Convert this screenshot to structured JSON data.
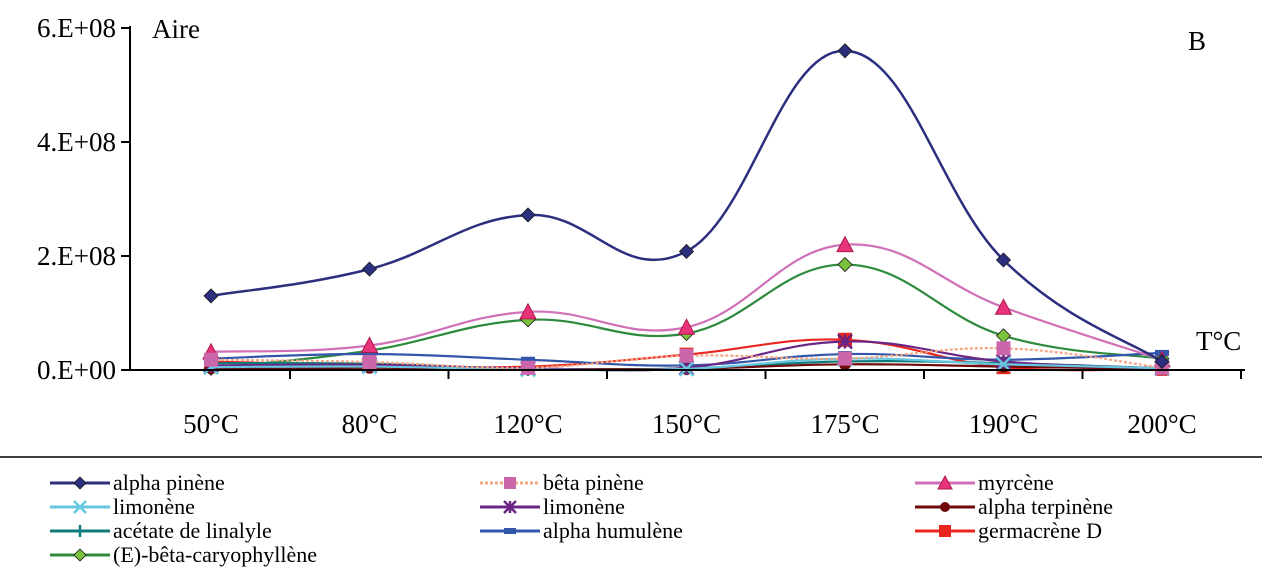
{
  "chart_data": {
    "type": "line",
    "ylabel": "Aire",
    "xlabel": "T°C",
    "panel_label": "B",
    "categories": [
      "50°C",
      "80°C",
      "120°C",
      "150°C",
      "175°C",
      "190°C",
      "200°C"
    ],
    "ylim": [
      0,
      600000000
    ],
    "yticks": [
      {
        "value": 0,
        "label": "0.E+00"
      },
      {
        "value": 200000000,
        "label": "2.E+08"
      },
      {
        "value": 400000000,
        "label": "4.E+08"
      },
      {
        "value": 600000000,
        "label": "6.E+08"
      }
    ],
    "grid": false,
    "smooth": true,
    "legend_position": "bottom",
    "series": [
      {
        "name": "alpha pinène",
        "color": "#2b2f7e",
        "marker": "diamond",
        "values": [
          130000000,
          177000000,
          272000000,
          208000000,
          560000000,
          193000000,
          15000000
        ]
      },
      {
        "name": "bêta pinène",
        "color": "#f4a582",
        "markerColor": "#cc66aa",
        "marker": "square",
        "dashed": true,
        "values": [
          18000000,
          14000000,
          4000000,
          25000000,
          20000000,
          38000000,
          4000000
        ]
      },
      {
        "name": "myrcène",
        "color": "#d070b8",
        "markerColor": "#e6337a",
        "marker": "triangle",
        "values": [
          32000000,
          43000000,
          102000000,
          75000000,
          220000000,
          110000000,
          18000000
        ]
      },
      {
        "name": "limonène",
        "color": "#66c8e0",
        "marker": "x",
        "values": [
          5000000,
          6000000,
          1000000,
          2000000,
          20000000,
          10000000,
          3000000
        ]
      },
      {
        "name": "limonène",
        "color": "#6b2585",
        "marker": "star",
        "values": [
          8000000,
          9000000,
          3000000,
          4000000,
          50000000,
          15000000,
          3000000
        ]
      },
      {
        "name": "alpha terpinène",
        "color": "#6e0a0a",
        "marker": "circle",
        "values": [
          3000000,
          4000000,
          2000000,
          2000000,
          10000000,
          6000000,
          2000000
        ]
      },
      {
        "name": "acétate de linalyle",
        "color": "#0e7a7a",
        "marker": "plus",
        "values": [
          12000000,
          11000000,
          2000000,
          3000000,
          15000000,
          12000000,
          3000000
        ]
      },
      {
        "name": "alpha humulène",
        "color": "#3355aa",
        "marker": "dash",
        "values": [
          20000000,
          28000000,
          18000000,
          8000000,
          28000000,
          18000000,
          30000000
        ]
      },
      {
        "name": "germacrène D",
        "color": "#e8261e",
        "marker": "square",
        "values": [
          15000000,
          8000000,
          6000000,
          27000000,
          53000000,
          5000000,
          2000000
        ]
      },
      {
        "name": "(E)-bêta-caryophyllène",
        "color": "#2e8b3e",
        "markerColor": "#7ac23c",
        "marker": "diamond",
        "values": [
          3000000,
          34000000,
          88000000,
          64000000,
          185000000,
          60000000,
          20000000
        ]
      }
    ]
  }
}
